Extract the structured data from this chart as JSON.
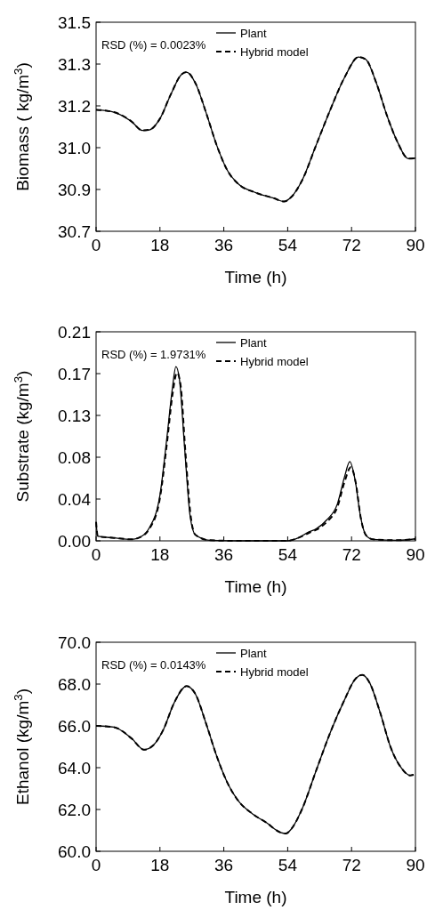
{
  "chart_data": [
    {
      "type": "line",
      "xlabel": "Time (h)",
      "ylabel": "Biomass ( kg/m$^{3}$)",
      "annotations": [
        "RSD (%) = 0.0023%"
      ],
      "xlim": [
        0,
        90
      ],
      "xticks": [
        0,
        18,
        36,
        54,
        72,
        90
      ],
      "ylim": [
        30.7,
        31.5
      ],
      "yticks": [
        30.7,
        {
          "value": 30.86,
          "label": "30.9"
        },
        {
          "value": 31.02,
          "label": "31.0"
        },
        {
          "value": 31.18,
          "label": "31.2"
        },
        {
          "value": 31.34,
          "label": "31.3"
        },
        31.5
      ],
      "grid": false,
      "legend": "top right",
      "series": [
        {
          "name": "Plant",
          "color": "#000000",
          "line_style": "solid",
          "x": [
            0,
            5,
            10,
            13,
            15,
            18,
            21,
            24,
            25.5,
            28,
            31,
            34,
            37,
            40,
            45,
            50,
            53,
            55,
            58,
            62,
            66,
            70,
            74,
            76,
            79,
            82,
            85,
            88,
            90
          ],
          "values": [
            31.165,
            31.156,
            31.12,
            31.086,
            31.088,
            31.131,
            31.222,
            31.299,
            31.309,
            31.267,
            31.154,
            31.029,
            30.933,
            30.882,
            30.848,
            30.827,
            30.814,
            30.831,
            30.893,
            31.029,
            31.165,
            31.288,
            31.367,
            31.358,
            31.267,
            31.142,
            31.04,
            30.978,
            30.98
          ]
        },
        {
          "name": "Hybrid model",
          "color": "#000000",
          "line_style": "dashed",
          "x": [
            0,
            5,
            10,
            13,
            15,
            18,
            21,
            24,
            25.5,
            28,
            31,
            34,
            37,
            40,
            45,
            50,
            53,
            55,
            58,
            62,
            66,
            70,
            74,
            76,
            79,
            82,
            85,
            88,
            90
          ],
          "values": [
            31.165,
            31.156,
            31.12,
            31.086,
            31.088,
            31.131,
            31.222,
            31.299,
            31.309,
            31.267,
            31.154,
            31.029,
            30.933,
            30.882,
            30.848,
            30.827,
            30.814,
            30.831,
            30.893,
            31.029,
            31.165,
            31.288,
            31.367,
            31.358,
            31.267,
            31.142,
            31.04,
            30.978,
            30.98
          ]
        }
      ]
    },
    {
      "type": "line",
      "xlabel": "Time (h)",
      "ylabel": "Substrate (kg/m$^{3}$)",
      "annotations": [
        "RSD (%) = 1.9731%"
      ],
      "xlim": [
        0,
        90
      ],
      "xticks": [
        0,
        18,
        36,
        54,
        72,
        90
      ],
      "ylim": [
        0,
        0.21
      ],
      "yticks": [
        {
          "value": 0,
          "label": "0.00"
        },
        {
          "value": 0.042,
          "label": "0.04"
        },
        {
          "value": 0.084,
          "label": "0.08"
        },
        {
          "value": 0.126,
          "label": "0.13"
        },
        {
          "value": 0.168,
          "label": "0.17"
        },
        0.21
      ],
      "grid": false,
      "legend": "top right",
      "series": [
        {
          "name": "Plant",
          "color": "#000000",
          "line_style": "solid",
          "x": [
            0,
            0.5,
            5,
            10,
            12,
            15,
            18,
            20,
            21.5,
            22.5,
            23.5,
            25,
            26.5,
            28,
            32,
            40,
            54,
            57,
            60,
            62,
            65,
            68,
            70,
            71.5,
            73,
            74.5,
            76,
            78,
            85,
            90
          ],
          "values": [
            0.019,
            0.0045,
            0.003,
            0.0015,
            0.003,
            0.013,
            0.046,
            0.105,
            0.153,
            0.175,
            0.162,
            0.091,
            0.025,
            0.006,
            0.0006,
            0,
            0,
            0.003,
            0.009,
            0.012,
            0.021,
            0.037,
            0.064,
            0.0796,
            0.061,
            0.025,
            0.006,
            0.0015,
            0.0006,
            0.002
          ]
        },
        {
          "name": "Hybrid model",
          "color": "#000000",
          "line_style": "dashed",
          "x": [
            0,
            0.5,
            5,
            10,
            12,
            15,
            18,
            20,
            21.5,
            22.8,
            23.8,
            25.2,
            26.7,
            28,
            32,
            40,
            54,
            57,
            60,
            62,
            65,
            68,
            70,
            71.8,
            73.2,
            74.6,
            76,
            78,
            85,
            90
          ],
          "values": [
            0.019,
            0.0045,
            0.003,
            0.0015,
            0.003,
            0.012,
            0.043,
            0.099,
            0.146,
            0.169,
            0.157,
            0.088,
            0.024,
            0.006,
            0.0006,
            0,
            0,
            0.003,
            0.008,
            0.011,
            0.019,
            0.034,
            0.059,
            0.074,
            0.058,
            0.023,
            0.006,
            0.0015,
            0.0006,
            0.002
          ]
        }
      ]
    },
    {
      "type": "line",
      "xlabel": "Time (h)",
      "ylabel": "Ethanol (kg/m$^{3}$)",
      "annotations": [
        "RSD (%) = 0.0143%"
      ],
      "xlim": [
        0,
        90
      ],
      "xticks": [
        0,
        18,
        36,
        54,
        72,
        90
      ],
      "ylim": [
        60,
        70
      ],
      "yticks": [
        {
          "value": 60,
          "label": "60.0"
        },
        {
          "value": 62,
          "label": "62.0"
        },
        {
          "value": 64,
          "label": "64.0"
        },
        {
          "value": 66,
          "label": "66.0"
        },
        {
          "value": 68,
          "label": "68.0"
        },
        {
          "value": 70,
          "label": "70.0"
        }
      ],
      "grid": false,
      "legend": "top right",
      "series": [
        {
          "name": "Plant",
          "color": "#000000",
          "line_style": "solid",
          "x": [
            0,
            5,
            10,
            13.5,
            16,
            19,
            22,
            25.5,
            28,
            31,
            34,
            37,
            40,
            44,
            48,
            52,
            53.5,
            55,
            58,
            62,
            66,
            70,
            73,
            75,
            77,
            80,
            83,
            86,
            88.5,
            89.5
          ],
          "values": [
            66.0,
            65.94,
            65.4,
            64.86,
            65.05,
            65.83,
            67.1,
            67.9,
            67.52,
            66.11,
            64.55,
            63.28,
            62.43,
            61.8,
            61.37,
            60.9,
            60.85,
            61.06,
            62.0,
            63.85,
            65.68,
            67.24,
            68.23,
            68.44,
            68.09,
            66.67,
            64.98,
            63.99,
            63.63,
            63.66
          ]
        },
        {
          "name": "Hybrid model",
          "color": "#000000",
          "line_style": "dashed",
          "x": [
            0,
            5,
            10,
            13.5,
            16,
            19,
            22,
            25.5,
            28,
            31,
            34,
            37,
            40,
            44,
            48,
            52,
            53.5,
            55,
            58,
            62,
            66,
            70,
            73,
            75,
            77,
            80,
            83,
            86,
            88.5,
            89.5
          ],
          "values": [
            66.0,
            65.94,
            65.4,
            64.86,
            65.05,
            65.83,
            67.1,
            67.9,
            67.52,
            66.11,
            64.55,
            63.28,
            62.43,
            61.8,
            61.37,
            60.9,
            60.85,
            61.06,
            62.0,
            63.85,
            65.68,
            67.24,
            68.23,
            68.44,
            68.09,
            66.67,
            64.98,
            63.99,
            63.63,
            63.66
          ]
        }
      ]
    }
  ]
}
